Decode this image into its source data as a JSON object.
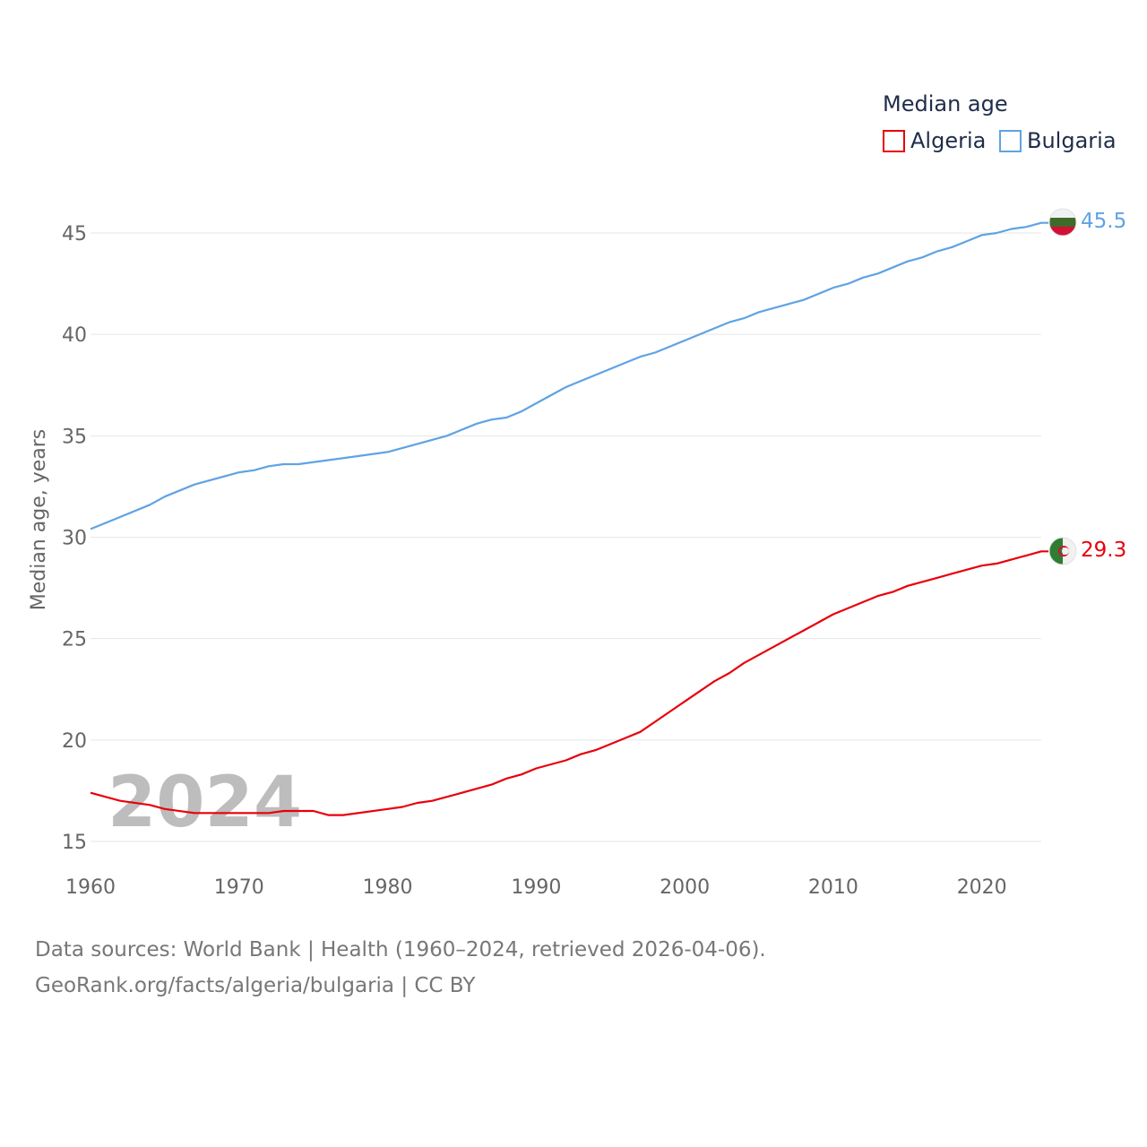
{
  "chart_data": {
    "type": "line",
    "legend_title": "Median age",
    "ylabel": "Median age, years",
    "ylim": [
      15,
      45
    ],
    "yticks": [
      15,
      20,
      25,
      30,
      35,
      40,
      45
    ],
    "xlim": [
      1960,
      2024
    ],
    "xticks": [
      1960,
      1970,
      1980,
      1990,
      2000,
      2010,
      2020
    ],
    "year_marker": "2024",
    "series": [
      {
        "name": "Algeria",
        "color": "#e8000b",
        "end_label": "29.3",
        "flag": "algeria-flag",
        "x": [
          1960,
          1962,
          1964,
          1965,
          1967,
          1970,
          1972,
          1973,
          1975,
          1976,
          1977,
          1980,
          1981,
          1982,
          1983,
          1985,
          1987,
          1988,
          1989,
          1990,
          1992,
          1993,
          1994,
          1996,
          1997,
          1998,
          2000,
          2002,
          2003,
          2004,
          2006,
          2008,
          2010,
          2012,
          2013,
          2014,
          2015,
          2016,
          2017,
          2018,
          2019,
          2020,
          2021,
          2022,
          2023,
          2024
        ],
        "values": [
          17.4,
          17.0,
          16.8,
          16.6,
          16.4,
          16.4,
          16.4,
          16.5,
          16.5,
          16.3,
          16.3,
          16.6,
          16.7,
          16.9,
          17.0,
          17.4,
          17.8,
          18.1,
          18.3,
          18.6,
          19.0,
          19.3,
          19.5,
          20.1,
          20.4,
          20.9,
          21.9,
          22.9,
          23.3,
          23.8,
          24.6,
          25.4,
          26.2,
          26.8,
          27.1,
          27.3,
          27.6,
          27.8,
          28.0,
          28.2,
          28.4,
          28.6,
          28.7,
          28.9,
          29.1,
          29.3
        ]
      },
      {
        "name": "Bulgaria",
        "color": "#5fa3e3",
        "end_label": "45.5",
        "flag": "bulgaria-flag",
        "x": [
          1960,
          1962,
          1964,
          1965,
          1967,
          1970,
          1971,
          1972,
          1973,
          1974,
          1976,
          1978,
          1980,
          1982,
          1984,
          1986,
          1987,
          1988,
          1989,
          1990,
          1992,
          1994,
          1996,
          1997,
          1998,
          2000,
          2002,
          2003,
          2004,
          2005,
          2007,
          2008,
          2010,
          2011,
          2012,
          2013,
          2015,
          2016,
          2017,
          2018,
          2019,
          2020,
          2021,
          2022,
          2023,
          2024
        ],
        "values": [
          30.4,
          31.0,
          31.6,
          32.0,
          32.6,
          33.2,
          33.3,
          33.5,
          33.6,
          33.6,
          33.8,
          34.0,
          34.2,
          34.6,
          35.0,
          35.6,
          35.8,
          35.9,
          36.2,
          36.6,
          37.4,
          38.0,
          38.6,
          38.9,
          39.1,
          39.7,
          40.3,
          40.6,
          40.8,
          41.1,
          41.5,
          41.7,
          42.3,
          42.5,
          42.8,
          43.0,
          43.6,
          43.8,
          44.1,
          44.3,
          44.6,
          44.9,
          45.0,
          45.2,
          45.3,
          45.5
        ]
      }
    ]
  },
  "footer": {
    "line1": "Data sources: World Bank | Health (1960–2024, retrieved 2026-04-06).",
    "line2": "GeoRank.org/facts/algeria/bulgaria | CC BY"
  }
}
